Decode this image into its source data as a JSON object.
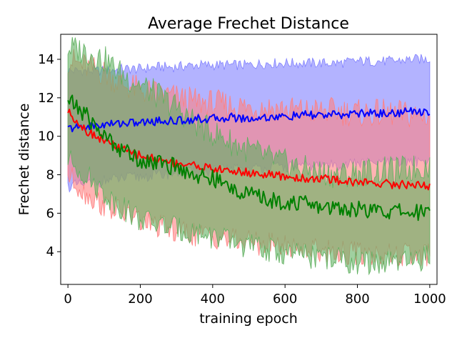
{
  "chart_data": {
    "type": "line",
    "title": "Average Frechet Distance",
    "xlabel": "training epoch",
    "ylabel": "Frechet distance",
    "xlim": [
      -20,
      1020
    ],
    "ylim": [
      2.3,
      15.3
    ],
    "xticks": [
      0,
      200,
      400,
      600,
      800,
      1000
    ],
    "yticks": [
      4,
      6,
      8,
      10,
      12,
      14
    ],
    "grid": false,
    "legend": "none",
    "series": [
      {
        "color": "#0000ff",
        "fill": "#8080ff",
        "x": [
          0,
          50,
          100,
          150,
          200,
          250,
          300,
          350,
          400,
          450,
          500,
          550,
          600,
          650,
          700,
          750,
          800,
          850,
          900,
          950,
          1000
        ],
        "mean": [
          10.4,
          10.5,
          10.6,
          10.7,
          10.7,
          10.8,
          10.8,
          10.9,
          10.9,
          11.0,
          10.9,
          11.0,
          11.0,
          11.1,
          11.1,
          11.1,
          11.2,
          11.2,
          11.2,
          11.3,
          11.3
        ],
        "lower": [
          7.4,
          7.5,
          7.7,
          7.8,
          7.9,
          8.0,
          8.1,
          8.1,
          8.2,
          8.3,
          8.3,
          8.4,
          8.4,
          8.4,
          8.5,
          8.5,
          8.6,
          8.6,
          8.6,
          8.7,
          8.7
        ],
        "upper": [
          13.4,
          13.4,
          13.4,
          13.5,
          13.5,
          13.6,
          13.6,
          13.7,
          13.7,
          13.7,
          13.7,
          13.8,
          13.8,
          13.8,
          13.8,
          13.8,
          13.9,
          13.9,
          13.9,
          14.0,
          14.0
        ]
      },
      {
        "color": "#ff0000",
        "fill": "#ff8080",
        "x": [
          0,
          50,
          100,
          150,
          200,
          250,
          300,
          350,
          400,
          450,
          500,
          550,
          600,
          650,
          700,
          750,
          800,
          850,
          900,
          950,
          1000
        ],
        "mean": [
          11.3,
          10.3,
          9.8,
          9.3,
          9.0,
          8.8,
          8.6,
          8.5,
          8.3,
          8.2,
          8.1,
          8.0,
          7.9,
          7.8,
          7.8,
          7.7,
          7.6,
          7.6,
          7.5,
          7.5,
          7.4
        ],
        "lower": [
          8.0,
          7.0,
          6.4,
          6.0,
          5.6,
          5.3,
          5.1,
          4.9,
          4.8,
          4.6,
          4.5,
          4.4,
          4.3,
          4.2,
          4.1,
          4.0,
          3.9,
          3.9,
          3.8,
          3.8,
          3.8
        ],
        "upper": [
          14.0,
          13.6,
          13.3,
          12.7,
          12.4,
          12.2,
          12.0,
          11.8,
          11.7,
          11.6,
          11.5,
          11.5,
          11.4,
          11.3,
          11.3,
          11.3,
          11.2,
          11.2,
          11.2,
          11.1,
          11.1
        ]
      },
      {
        "color": "#008000",
        "fill": "#60b060",
        "x": [
          0,
          50,
          100,
          150,
          200,
          250,
          300,
          350,
          400,
          450,
          500,
          550,
          600,
          650,
          700,
          750,
          800,
          850,
          900,
          950,
          1000
        ],
        "mean": [
          11.9,
          11.1,
          10.0,
          9.3,
          8.8,
          8.6,
          8.4,
          8.0,
          7.8,
          7.3,
          7.0,
          6.7,
          6.6,
          6.5,
          6.3,
          6.3,
          6.2,
          6.1,
          6.1,
          6.0,
          6.2
        ],
        "lower": [
          8.8,
          8.0,
          7.0,
          6.3,
          5.7,
          5.4,
          5.2,
          5.0,
          4.8,
          4.5,
          4.3,
          4.1,
          3.9,
          3.8,
          3.7,
          3.6,
          3.4,
          3.4,
          3.4,
          3.4,
          3.8
        ],
        "upper": [
          14.6,
          14.4,
          14.0,
          13.2,
          12.7,
          12.1,
          11.5,
          10.7,
          10.2,
          9.7,
          9.3,
          8.9,
          8.6,
          8.3,
          8.1,
          8.0,
          8.1,
          8.2,
          8.2,
          8.3,
          8.5
        ]
      }
    ]
  }
}
